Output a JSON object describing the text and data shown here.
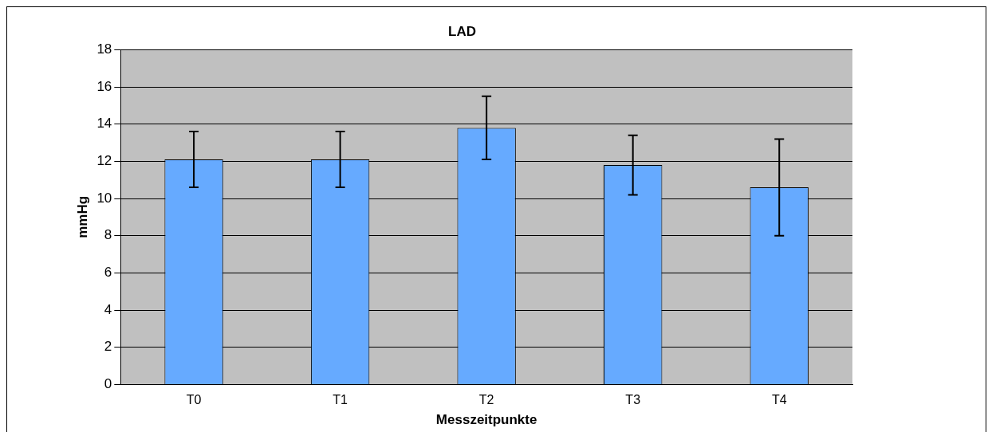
{
  "chart_data": {
    "type": "bar",
    "title": "LAD",
    "xlabel": "Messzeitpunkte",
    "ylabel": "mmHg",
    "categories": [
      "T0",
      "T1",
      "T2",
      "T3",
      "T4"
    ],
    "values": [
      12.1,
      12.1,
      13.8,
      11.8,
      10.6
    ],
    "errors": [
      1.5,
      1.5,
      1.7,
      1.6,
      2.6
    ],
    "color": "#66aaff",
    "ylim": [
      0,
      18
    ],
    "yticks": [
      0,
      2,
      4,
      6,
      8,
      10,
      12,
      14,
      16,
      18
    ],
    "grid": "y",
    "legend": false
  }
}
